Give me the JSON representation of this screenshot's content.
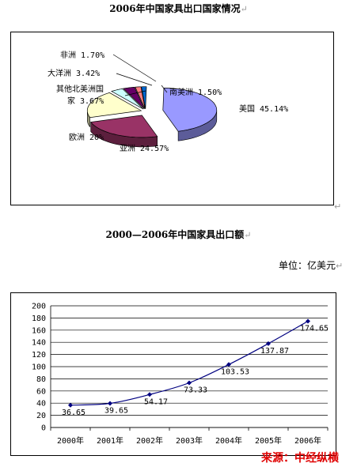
{
  "page": {
    "title1": "2006年中国家具出口国家情况",
    "title2": "2000—2006年中国家具出口额",
    "unit": "单位：亿美元",
    "source": "来源：中经纵横",
    "return_mark": "↵"
  },
  "chart_data": [
    {
      "type": "pie",
      "title": "2006年中国家具出口国家情况",
      "slices": [
        {
          "label": "美国",
          "display": "美国 45.14%",
          "value": 45.14,
          "color": "#9999ff"
        },
        {
          "label": "亚洲",
          "display": "亚洲 24.57%",
          "value": 24.57,
          "color": "#993366"
        },
        {
          "label": "欧洲",
          "display": "欧洲 20%",
          "value": 20,
          "color": "#ffffcc"
        },
        {
          "label": "其他北美洲国家",
          "display_line1": "其他北美洲国",
          "display_line2": "家 3.67%",
          "value": 3.67,
          "color": "#ccffff"
        },
        {
          "label": "大洋洲",
          "display": "大洋洲 3.42%",
          "value": 3.42,
          "color": "#660066"
        },
        {
          "label": "非洲",
          "display": "非洲 1.70%",
          "value": 1.7,
          "color": "#ff8080"
        },
        {
          "label": "南美洲",
          "display": "南美洲 1.50%",
          "value": 1.5,
          "color": "#0066cc"
        }
      ]
    },
    {
      "type": "line",
      "title": "2000—2006年中国家具出口额",
      "unit": "亿美元",
      "categories": [
        "2000年",
        "2001年",
        "2002年",
        "2003年",
        "2004年",
        "2005年",
        "2006年"
      ],
      "values": [
        36.65,
        39.65,
        54.17,
        73.33,
        103.53,
        137.87,
        174.65
      ],
      "data_labels": [
        "36.65",
        "39.65",
        "54.17",
        "73.33",
        "103.53",
        "137.87",
        "174.65"
      ],
      "ylim": [
        0,
        200
      ],
      "y_ticks": [
        0,
        20,
        40,
        60,
        80,
        100,
        120,
        140,
        160,
        180,
        200
      ],
      "grid": true,
      "legend": "none",
      "line_color": "#000080"
    }
  ]
}
